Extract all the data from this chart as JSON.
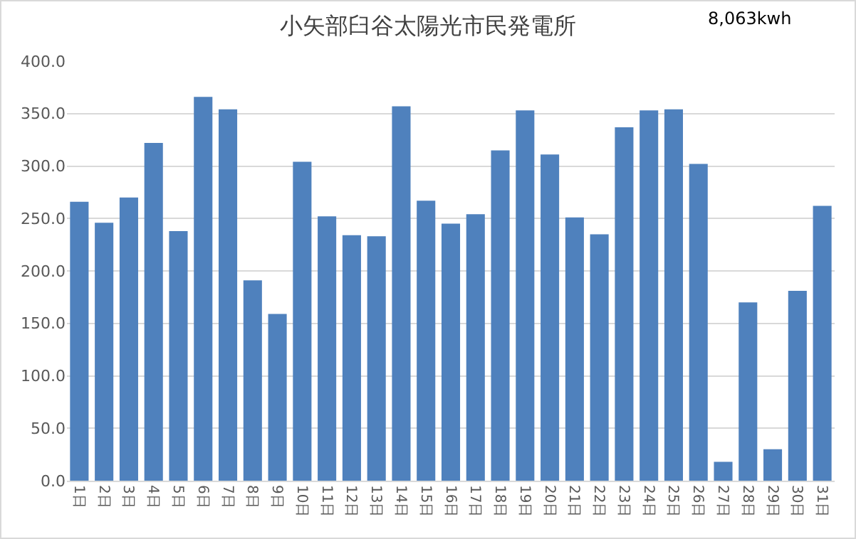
{
  "chart_data": {
    "type": "bar",
    "title": "小矢部臼谷太陽光市民発電所",
    "annotations": [
      "8,063kwh"
    ],
    "categories": [
      "1日",
      "2日",
      "3日",
      "4日",
      "5日",
      "6日",
      "7日",
      "8日",
      "9日",
      "10日",
      "11日",
      "12日",
      "13日",
      "14日",
      "15日",
      "16日",
      "17日",
      "18日",
      "19日",
      "20日",
      "21日",
      "22日",
      "23日",
      "24日",
      "25日",
      "26日",
      "27日",
      "28日",
      "29日",
      "30日",
      "31日"
    ],
    "values": [
      266,
      246,
      270,
      322,
      238,
      366,
      354,
      191,
      159,
      304,
      252,
      234,
      233,
      357,
      267,
      245,
      254,
      315,
      353,
      311,
      251,
      235,
      337,
      353,
      354,
      302,
      18,
      170,
      30,
      181,
      262
    ],
    "color": "#4f81bd",
    "ylim": [
      0,
      400
    ],
    "yticks": [
      {
        "value": 0,
        "label": "0.0"
      },
      {
        "value": 50,
        "label": "50.0"
      },
      {
        "value": 100,
        "label": "100.0"
      },
      {
        "value": 150,
        "label": "150.0"
      },
      {
        "value": 200,
        "label": "200.0"
      },
      {
        "value": 250,
        "label": "250.0"
      },
      {
        "value": 300,
        "label": "300.0"
      },
      {
        "value": 350,
        "label": "350.0"
      },
      {
        "value": 400,
        "label": "400.0"
      }
    ],
    "grid": "y"
  }
}
